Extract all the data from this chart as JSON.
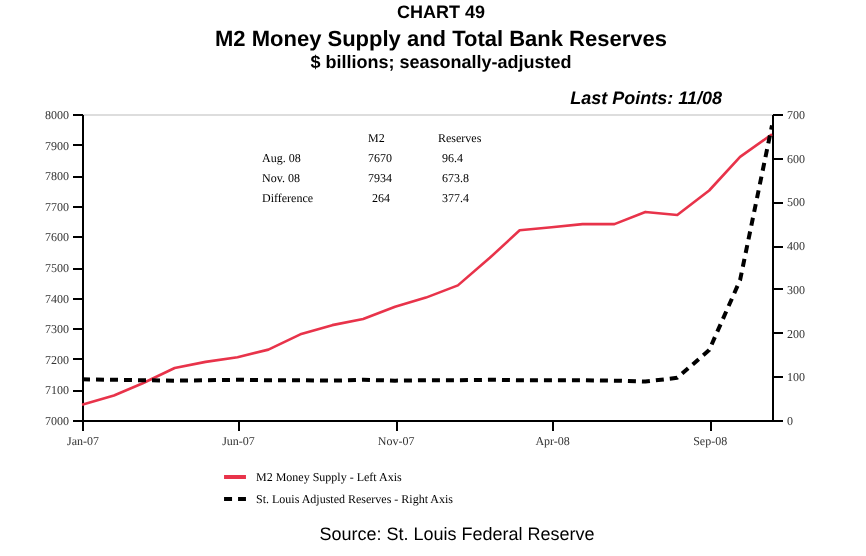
{
  "chart_data": {
    "type": "line",
    "title": "M2 Money Supply and Total Bank Reserves",
    "subtitle": "$ billions; seasonally-adjusted",
    "x": [
      "2007-01",
      "2007-02",
      "2007-03",
      "2007-04",
      "2007-05",
      "2007-06",
      "2007-07",
      "2007-08",
      "2007-09",
      "2007-10",
      "2007-11",
      "2007-12",
      "2008-01",
      "2008-02",
      "2008-03",
      "2008-04",
      "2008-05",
      "2008-06",
      "2008-07",
      "2008-08",
      "2008-09",
      "2008-10",
      "2008-11"
    ],
    "series": [
      {
        "name": "M2 Money Supply - Left Axis",
        "color": "#e8334a",
        "line_style": "solid",
        "values": [
          7050,
          7080,
          7120,
          7170,
          7190,
          7205,
          7230,
          7280,
          7310,
          7330,
          7370,
          7400,
          7440,
          7530,
          7620,
          7630,
          7640,
          7640,
          7680,
          7670,
          7750,
          7860,
          7934
        ]
      },
      {
        "name": "St. Louis Adjusted Reserves - Right Axis",
        "color": "#000000",
        "line_style": "dashed",
        "axis": "y2",
        "values": [
          93,
          92,
          91,
          90,
          91,
          92,
          91,
          91,
          90,
          92,
          90,
          91,
          91,
          92,
          91,
          91,
          91,
          90,
          88,
          96.4,
          160,
          320,
          673.8
        ]
      }
    ],
    "xlim": [
      "2007-01",
      "2008-11"
    ],
    "xticks": [
      {
        "value": "2007-01",
        "label": "Jan-07"
      },
      {
        "value": "2007-06",
        "label": "Jun-07"
      },
      {
        "value": "2007-11",
        "label": "Nov-07"
      },
      {
        "value": "2008-04",
        "label": "Apr-08"
      },
      {
        "value": "2008-09",
        "label": "Sep-08"
      }
    ],
    "ylim": [
      7000,
      8000
    ],
    "yticks": [
      7000,
      7100,
      7200,
      7300,
      7400,
      7500,
      7600,
      7700,
      7800,
      7900,
      8000
    ],
    "y2lim": [
      0,
      700
    ],
    "y2ticks": [
      0,
      100,
      200,
      300,
      400,
      500,
      600,
      700
    ],
    "grid": false,
    "legend": "bottom left",
    "annotations": [
      "CHART 49",
      "Last Points: 11/08",
      "M2",
      "Reserves",
      "Aug. 08",
      "7670",
      "96.4",
      "Nov. 08",
      "7934",
      "673.8",
      "Difference",
      "264",
      "377.4",
      "Source:  St. Louis Federal Reserve"
    ]
  }
}
